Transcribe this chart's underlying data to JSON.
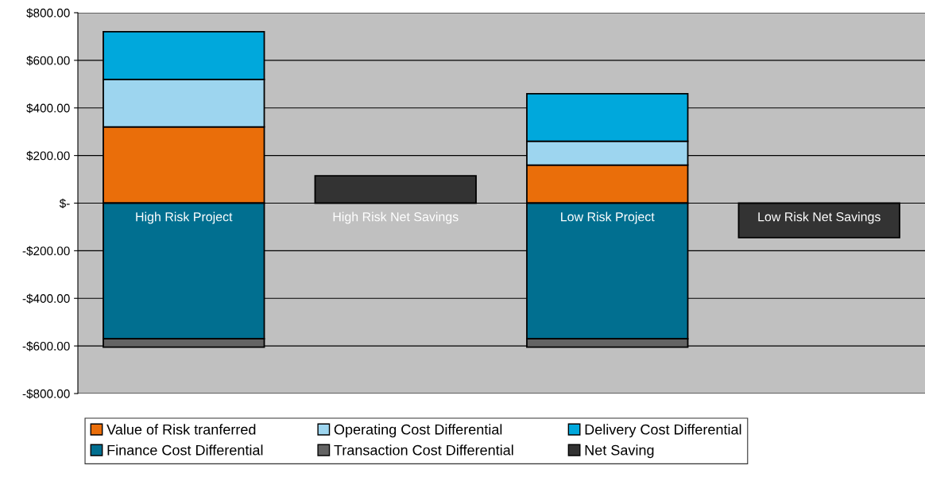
{
  "chart_data": {
    "type": "bar",
    "stacked": true,
    "categories": [
      "High Risk Project",
      "High Risk Net Savings",
      "Low Risk Project",
      "Low Risk Net Savings"
    ],
    "series": [
      {
        "name": "Value of Risk tranferred",
        "color": "#ea6e0a",
        "values": [
          320,
          null,
          160,
          null
        ]
      },
      {
        "name": "Operating Cost Differential",
        "color": "#9dd5ef",
        "values": [
          200,
          null,
          100,
          null
        ]
      },
      {
        "name": "Delivery Cost Differential",
        "color": "#00a8dc",
        "values": [
          200,
          null,
          200,
          null
        ]
      },
      {
        "name": "Finance Cost Differential",
        "color": "#016f90",
        "values": [
          -570,
          null,
          -570,
          null
        ]
      },
      {
        "name": "Transaction Cost Differential",
        "color": "#646464",
        "values": [
          -35,
          null,
          -35,
          null
        ]
      },
      {
        "name": "Net Saving",
        "color": "#333333",
        "values": [
          null,
          115,
          null,
          -145
        ]
      }
    ],
    "ylim": [
      -800,
      800
    ],
    "yticks": [
      {
        "value": -800,
        "label": "-$800.00"
      },
      {
        "value": -600,
        "label": "-$600.00"
      },
      {
        "value": -400,
        "label": "-$400.00"
      },
      {
        "value": -200,
        "label": "-$200.00"
      },
      {
        "value": 0,
        "label": "$-"
      },
      {
        "value": 200,
        "label": "$200.00"
      },
      {
        "value": 400,
        "label": "$400.00"
      },
      {
        "value": 600,
        "label": "$600.00"
      },
      {
        "value": 800,
        "label": "$800.00"
      }
    ],
    "grid": "y",
    "legend": "bottom"
  }
}
